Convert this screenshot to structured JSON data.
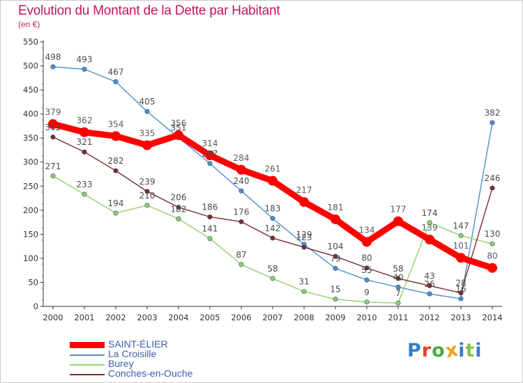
{
  "title": "Evolution du Montant de la Dette par Habitant",
  "subtitle": "(en €)",
  "logo_text": "Proxiti",
  "logo_colors": [
    "#3a7fc3",
    "#e8452c",
    "#4aa84a",
    "#f0a020",
    "#3a7fc3",
    "#8bc34a",
    "#3a7fc3"
  ],
  "chart_data": {
    "type": "line",
    "categories": [
      "2000",
      "2001",
      "2002",
      "2003",
      "2004",
      "2005",
      "2006",
      "2007",
      "2008",
      "2009",
      "2010",
      "2011",
      "2012",
      "2013",
      "2014"
    ],
    "ylim": [
      0,
      550
    ],
    "yticks": [
      0,
      50,
      100,
      150,
      200,
      250,
      300,
      350,
      400,
      450,
      500,
      550
    ],
    "grid": false,
    "legend_position": "bottom-left",
    "series": [
      {
        "name": "SAINT-ÉLIER",
        "color": "#ff0000",
        "labelColor": "#5a5a5a",
        "bold": true,
        "values": [
          379,
          362,
          354,
          335,
          356,
          314,
          284,
          261,
          217,
          181,
          134,
          177,
          139,
          101,
          80
        ]
      },
      {
        "name": "La Croisille",
        "color": "#4f8fc9",
        "labelColor": "#4a4a4a",
        "bold": false,
        "values": [
          498,
          493,
          467,
          405,
          351,
          297,
          240,
          183,
          129,
          79,
          55,
          40,
          26,
          16,
          382
        ]
      },
      {
        "name": "Burey",
        "color": "#8fd16a",
        "labelColor": "#4a4a4a",
        "bold": false,
        "values": [
          271,
          233,
          194,
          210,
          182,
          141,
          87,
          58,
          31,
          15,
          9,
          7,
          174,
          147,
          130
        ]
      },
      {
        "name": "Conches-en-Ouche",
        "color": "#7a2b2b",
        "labelColor": "#4a4a4a",
        "bold": false,
        "values": [
          352,
          321,
          282,
          239,
          206,
          186,
          176,
          142,
          123,
          104,
          80,
          58,
          43,
          28,
          246
        ]
      }
    ],
    "labels": [
      [
        379,
        362,
        354,
        335,
        356,
        314,
        284,
        261,
        217,
        181,
        134,
        177,
        139,
        101,
        80
      ],
      [
        498,
        493,
        467,
        405,
        351,
        297,
        240,
        183,
        129,
        79,
        55,
        40,
        26,
        16,
        382
      ],
      [
        271,
        233,
        194,
        210,
        182,
        141,
        87,
        58,
        31,
        15,
        9,
        7,
        174,
        147,
        130
      ],
      [
        352,
        321,
        282,
        239,
        206,
        186,
        176,
        142,
        123,
        104,
        80,
        58,
        43,
        28,
        246
      ]
    ]
  }
}
